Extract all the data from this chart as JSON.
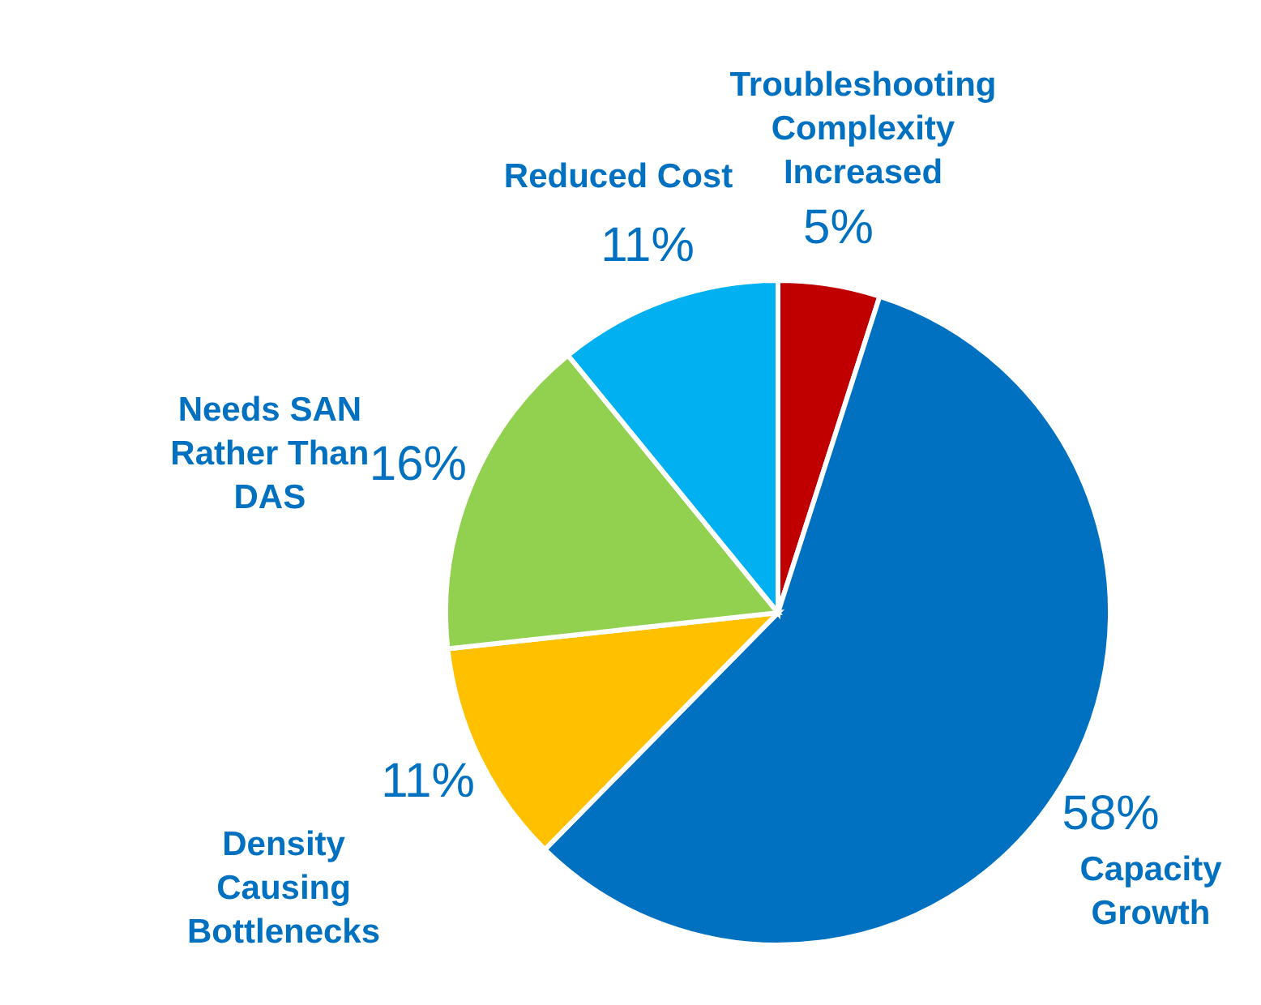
{
  "chart_data": {
    "type": "pie",
    "categories": [
      "Troubleshooting Complexity Increased",
      "Capacity Growth",
      "Density Causing Bottlenecks",
      "Needs SAN Rather Than DAS",
      "Reduced Cost"
    ],
    "values": [
      5,
      58,
      11,
      16,
      11
    ],
    "colors": [
      "#c00000",
      "#0070c0",
      "#ffc000",
      "#92d050",
      "#00b0f0"
    ],
    "value_labels": [
      "5%",
      "58%",
      "11%",
      "16%",
      "11%"
    ]
  }
}
